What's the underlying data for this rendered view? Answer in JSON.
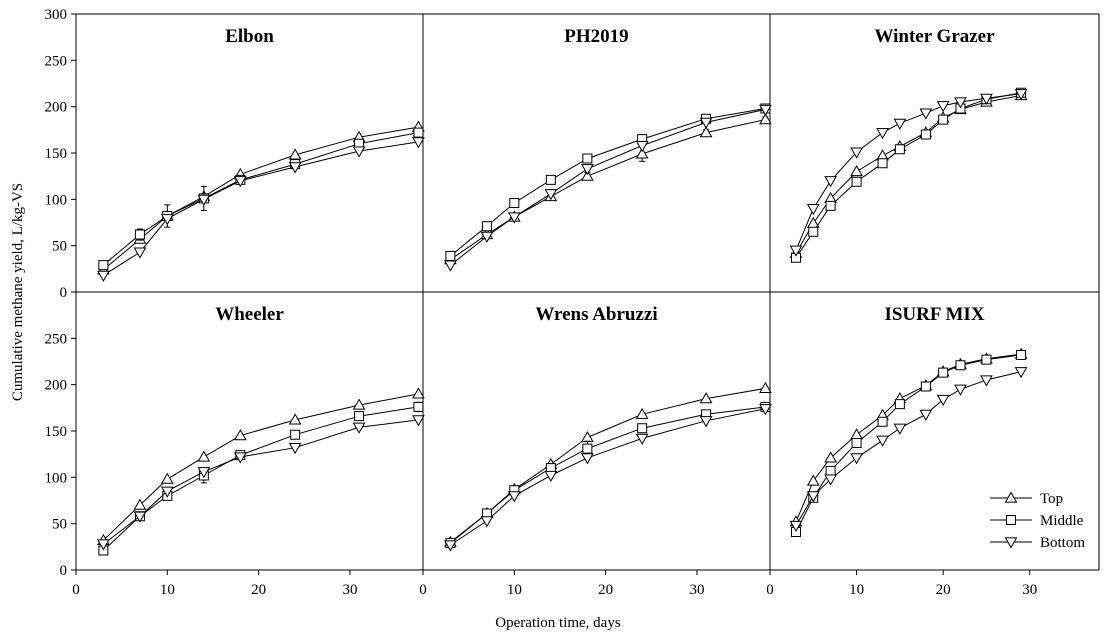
{
  "chart_data": {
    "type": "line",
    "xlabel": "Operation time, days",
    "ylabel": "Cumulative methane yield, L/kg-VS",
    "xlim": [
      0,
      38
    ],
    "ylim": [
      0,
      300
    ],
    "y_ticks_top_row": [
      0,
      50,
      100,
      150,
      200,
      250,
      300
    ],
    "y_ticks_bottom_row": [
      0,
      50,
      100,
      150,
      200,
      250
    ],
    "x_ticks": [
      0,
      10,
      20,
      30
    ],
    "legend": {
      "placement": "bottom-right",
      "entries": [
        {
          "name": "Top",
          "marker": "triangle-up"
        },
        {
          "name": "Middle",
          "marker": "square"
        },
        {
          "name": "Bottom",
          "marker": "triangle-down"
        }
      ]
    },
    "panels": [
      {
        "title": "Elbon",
        "row": 0,
        "col": 0,
        "series": [
          {
            "name": "Top",
            "x": [
              3,
              7,
              10,
              14,
              18,
              24,
              31,
              37.5
            ],
            "y": [
              24,
              57,
              82,
              103,
              127,
              148,
              167,
              178
            ]
          },
          {
            "name": "Middle",
            "x": [
              3,
              7,
              10,
              14,
              18,
              24,
              31,
              37.5
            ],
            "y": [
              29,
              62,
              82,
              101,
              121,
              138,
              160,
              172
            ],
            "err": [
              3,
              6,
              12,
              13,
              3,
              3,
              4,
              4
            ]
          },
          {
            "name": "Bottom",
            "x": [
              3,
              7,
              10,
              14,
              18,
              24,
              31,
              37.5
            ],
            "y": [
              18,
              43,
              79,
              100,
              120,
              135,
              152,
              162
            ]
          }
        ]
      },
      {
        "title": "PH2019",
        "row": 0,
        "col": 1,
        "series": [
          {
            "name": "Top",
            "x": [
              3,
              7,
              10,
              14,
              18,
              24,
              31,
              37.5
            ],
            "y": [
              35,
              62,
              81,
              103,
              125,
              149,
              172,
              186
            ],
            "err": [
              2,
              2,
              2,
              4,
              4,
              8,
              3,
              3
            ]
          },
          {
            "name": "Middle",
            "x": [
              3,
              7,
              10,
              14,
              18,
              24,
              31,
              37.5
            ],
            "y": [
              39,
              71,
              96,
              121,
              144,
              165,
              187,
              198
            ]
          },
          {
            "name": "Bottom",
            "x": [
              3,
              7,
              10,
              14,
              18,
              24,
              31,
              37.5
            ],
            "y": [
              29,
              60,
              81,
              106,
              133,
              158,
              183,
              197
            ]
          }
        ]
      },
      {
        "title": "Winter Grazer",
        "row": 0,
        "col": 2,
        "series": [
          {
            "name": "Top",
            "x": [
              3,
              5,
              7,
              10,
              13,
              15,
              18,
              20,
              22,
              25,
              29
            ],
            "y": [
              42,
              74,
              101,
              130,
              147,
              157,
              172,
              188,
              197,
              205,
              212
            ]
          },
          {
            "name": "Middle",
            "x": [
              3,
              5,
              7,
              10,
              13,
              15,
              18,
              20,
              22,
              25,
              29
            ],
            "y": [
              37,
              65,
              93,
              119,
              139,
              154,
              170,
              186,
              198,
              208,
              215
            ]
          },
          {
            "name": "Bottom",
            "x": [
              3,
              5,
              7,
              10,
              13,
              15,
              18,
              20,
              22,
              25,
              29
            ],
            "y": [
              45,
              90,
              120,
              151,
              172,
              182,
              193,
              201,
              205,
              209,
              214
            ]
          }
        ]
      },
      {
        "title": "Wheeler",
        "row": 1,
        "col": 0,
        "series": [
          {
            "name": "Top",
            "x": [
              3,
              7,
              10,
              14,
              18,
              24,
              31,
              37.5
            ],
            "y": [
              32,
              70,
              98,
              122,
              145,
              162,
              178,
              190
            ]
          },
          {
            "name": "Middle",
            "x": [
              3,
              7,
              10,
              14,
              18,
              24,
              31,
              37.5
            ],
            "y": [
              21,
              58,
              80,
              102,
              124,
              146,
              166,
              176
            ],
            "err": [
              3,
              3,
              3,
              8,
              3,
              3,
              3,
              5
            ]
          },
          {
            "name": "Bottom",
            "x": [
              3,
              7,
              10,
              14,
              18,
              24,
              31,
              37.5
            ],
            "y": [
              28,
              58,
              85,
              106,
              122,
              132,
              154,
              162
            ]
          }
        ]
      },
      {
        "title": "Wrens Abruzzi",
        "row": 1,
        "col": 1,
        "series": [
          {
            "name": "Top",
            "x": [
              3,
              7,
              10,
              14,
              18,
              24,
              31,
              37.5
            ],
            "y": [
              30,
              61,
              87,
              114,
              143,
              168,
              185,
              196
            ]
          },
          {
            "name": "Middle",
            "x": [
              3,
              7,
              10,
              14,
              18,
              24,
              31,
              37.5
            ],
            "y": [
              29,
              61,
              86,
              110,
              131,
              153,
              168,
              176
            ],
            "err": [
              4,
              4,
              4,
              4,
              8,
              4,
              4,
              4
            ]
          },
          {
            "name": "Bottom",
            "x": [
              3,
              7,
              10,
              14,
              18,
              24,
              31,
              37.5
            ],
            "y": [
              27,
              53,
              80,
              102,
              121,
              142,
              161,
              174
            ]
          }
        ]
      },
      {
        "title": "ISURF MIX",
        "row": 1,
        "col": 2,
        "series": [
          {
            "name": "Top",
            "x": [
              3,
              5,
              7,
              10,
              13,
              15,
              18,
              20,
              22,
              25,
              29
            ],
            "y": [
              52,
              96,
              121,
              146,
              167,
              185,
              199,
              214,
              222,
              228,
              233
            ]
          },
          {
            "name": "Middle",
            "x": [
              3,
              5,
              7,
              10,
              13,
              15,
              18,
              20,
              22,
              25,
              29
            ],
            "y": [
              41,
              78,
              107,
              137,
              160,
              179,
              198,
              213,
              221,
              227,
              232
            ]
          },
          {
            "name": "Bottom",
            "x": [
              3,
              5,
              7,
              10,
              13,
              15,
              18,
              20,
              22,
              25,
              29
            ],
            "y": [
              48,
              80,
              98,
              121,
              140,
              153,
              168,
              184,
              195,
              205,
              214
            ]
          }
        ]
      }
    ]
  }
}
